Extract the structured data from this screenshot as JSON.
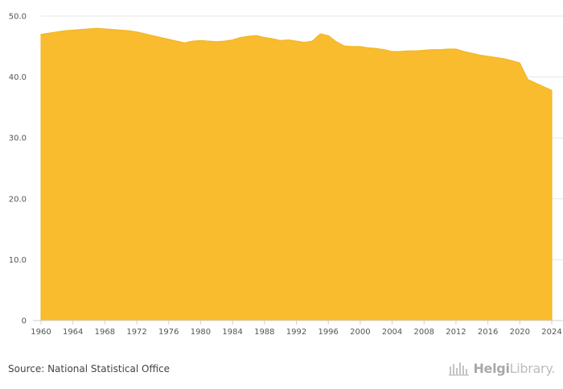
{
  "chart_data": {
    "type": "area",
    "title": "",
    "xlabel": "",
    "ylabel": "",
    "ylim": [
      0,
      50
    ],
    "yticks": [
      "0",
      "10.0",
      "20.0",
      "30.0",
      "40.0",
      "50.0"
    ],
    "xticks": [
      "1960",
      "1964",
      "1968",
      "1972",
      "1976",
      "1980",
      "1984",
      "1988",
      "1992",
      "1996",
      "2000",
      "2004",
      "2008",
      "2012",
      "2016",
      "2020",
      "2024"
    ],
    "grid": true,
    "x": [
      1960,
      1961,
      1962,
      1963,
      1964,
      1965,
      1966,
      1967,
      1968,
      1969,
      1970,
      1971,
      1972,
      1973,
      1974,
      1975,
      1976,
      1977,
      1978,
      1979,
      1980,
      1981,
      1982,
      1983,
      1984,
      1985,
      1986,
      1987,
      1988,
      1989,
      1990,
      1991,
      1992,
      1993,
      1994,
      1995,
      1996,
      1997,
      1998,
      1999,
      2000,
      2001,
      2002,
      2003,
      2004,
      2005,
      2006,
      2007,
      2008,
      2009,
      2010,
      2011,
      2012,
      2013,
      2014,
      2015,
      2016,
      2017,
      2018,
      2019,
      2020,
      2021,
      2022,
      2023,
      2024
    ],
    "series": [
      {
        "color": "#F9BC2F",
        "values": [
          47.0,
          47.2,
          47.4,
          47.6,
          47.7,
          47.8,
          47.9,
          48.0,
          47.9,
          47.8,
          47.7,
          47.6,
          47.4,
          47.1,
          46.8,
          46.5,
          46.2,
          45.9,
          45.6,
          45.9,
          46.0,
          45.9,
          45.8,
          45.9,
          46.1,
          46.5,
          46.7,
          46.8,
          46.5,
          46.3,
          46.0,
          46.1,
          45.9,
          45.7,
          45.9,
          47.1,
          46.8,
          45.8,
          45.1,
          45.0,
          45.0,
          44.8,
          44.7,
          44.5,
          44.2,
          44.2,
          44.3,
          44.3,
          44.4,
          44.5,
          44.5,
          44.6,
          44.6,
          44.2,
          43.9,
          43.6,
          43.4,
          43.2,
          43.0,
          42.7,
          42.3,
          39.6,
          39.0,
          38.4,
          37.8
        ]
      }
    ]
  },
  "footer": {
    "source": "Source: National Statistical Office",
    "brand_bold": "Helgi",
    "brand_light": "Library."
  }
}
